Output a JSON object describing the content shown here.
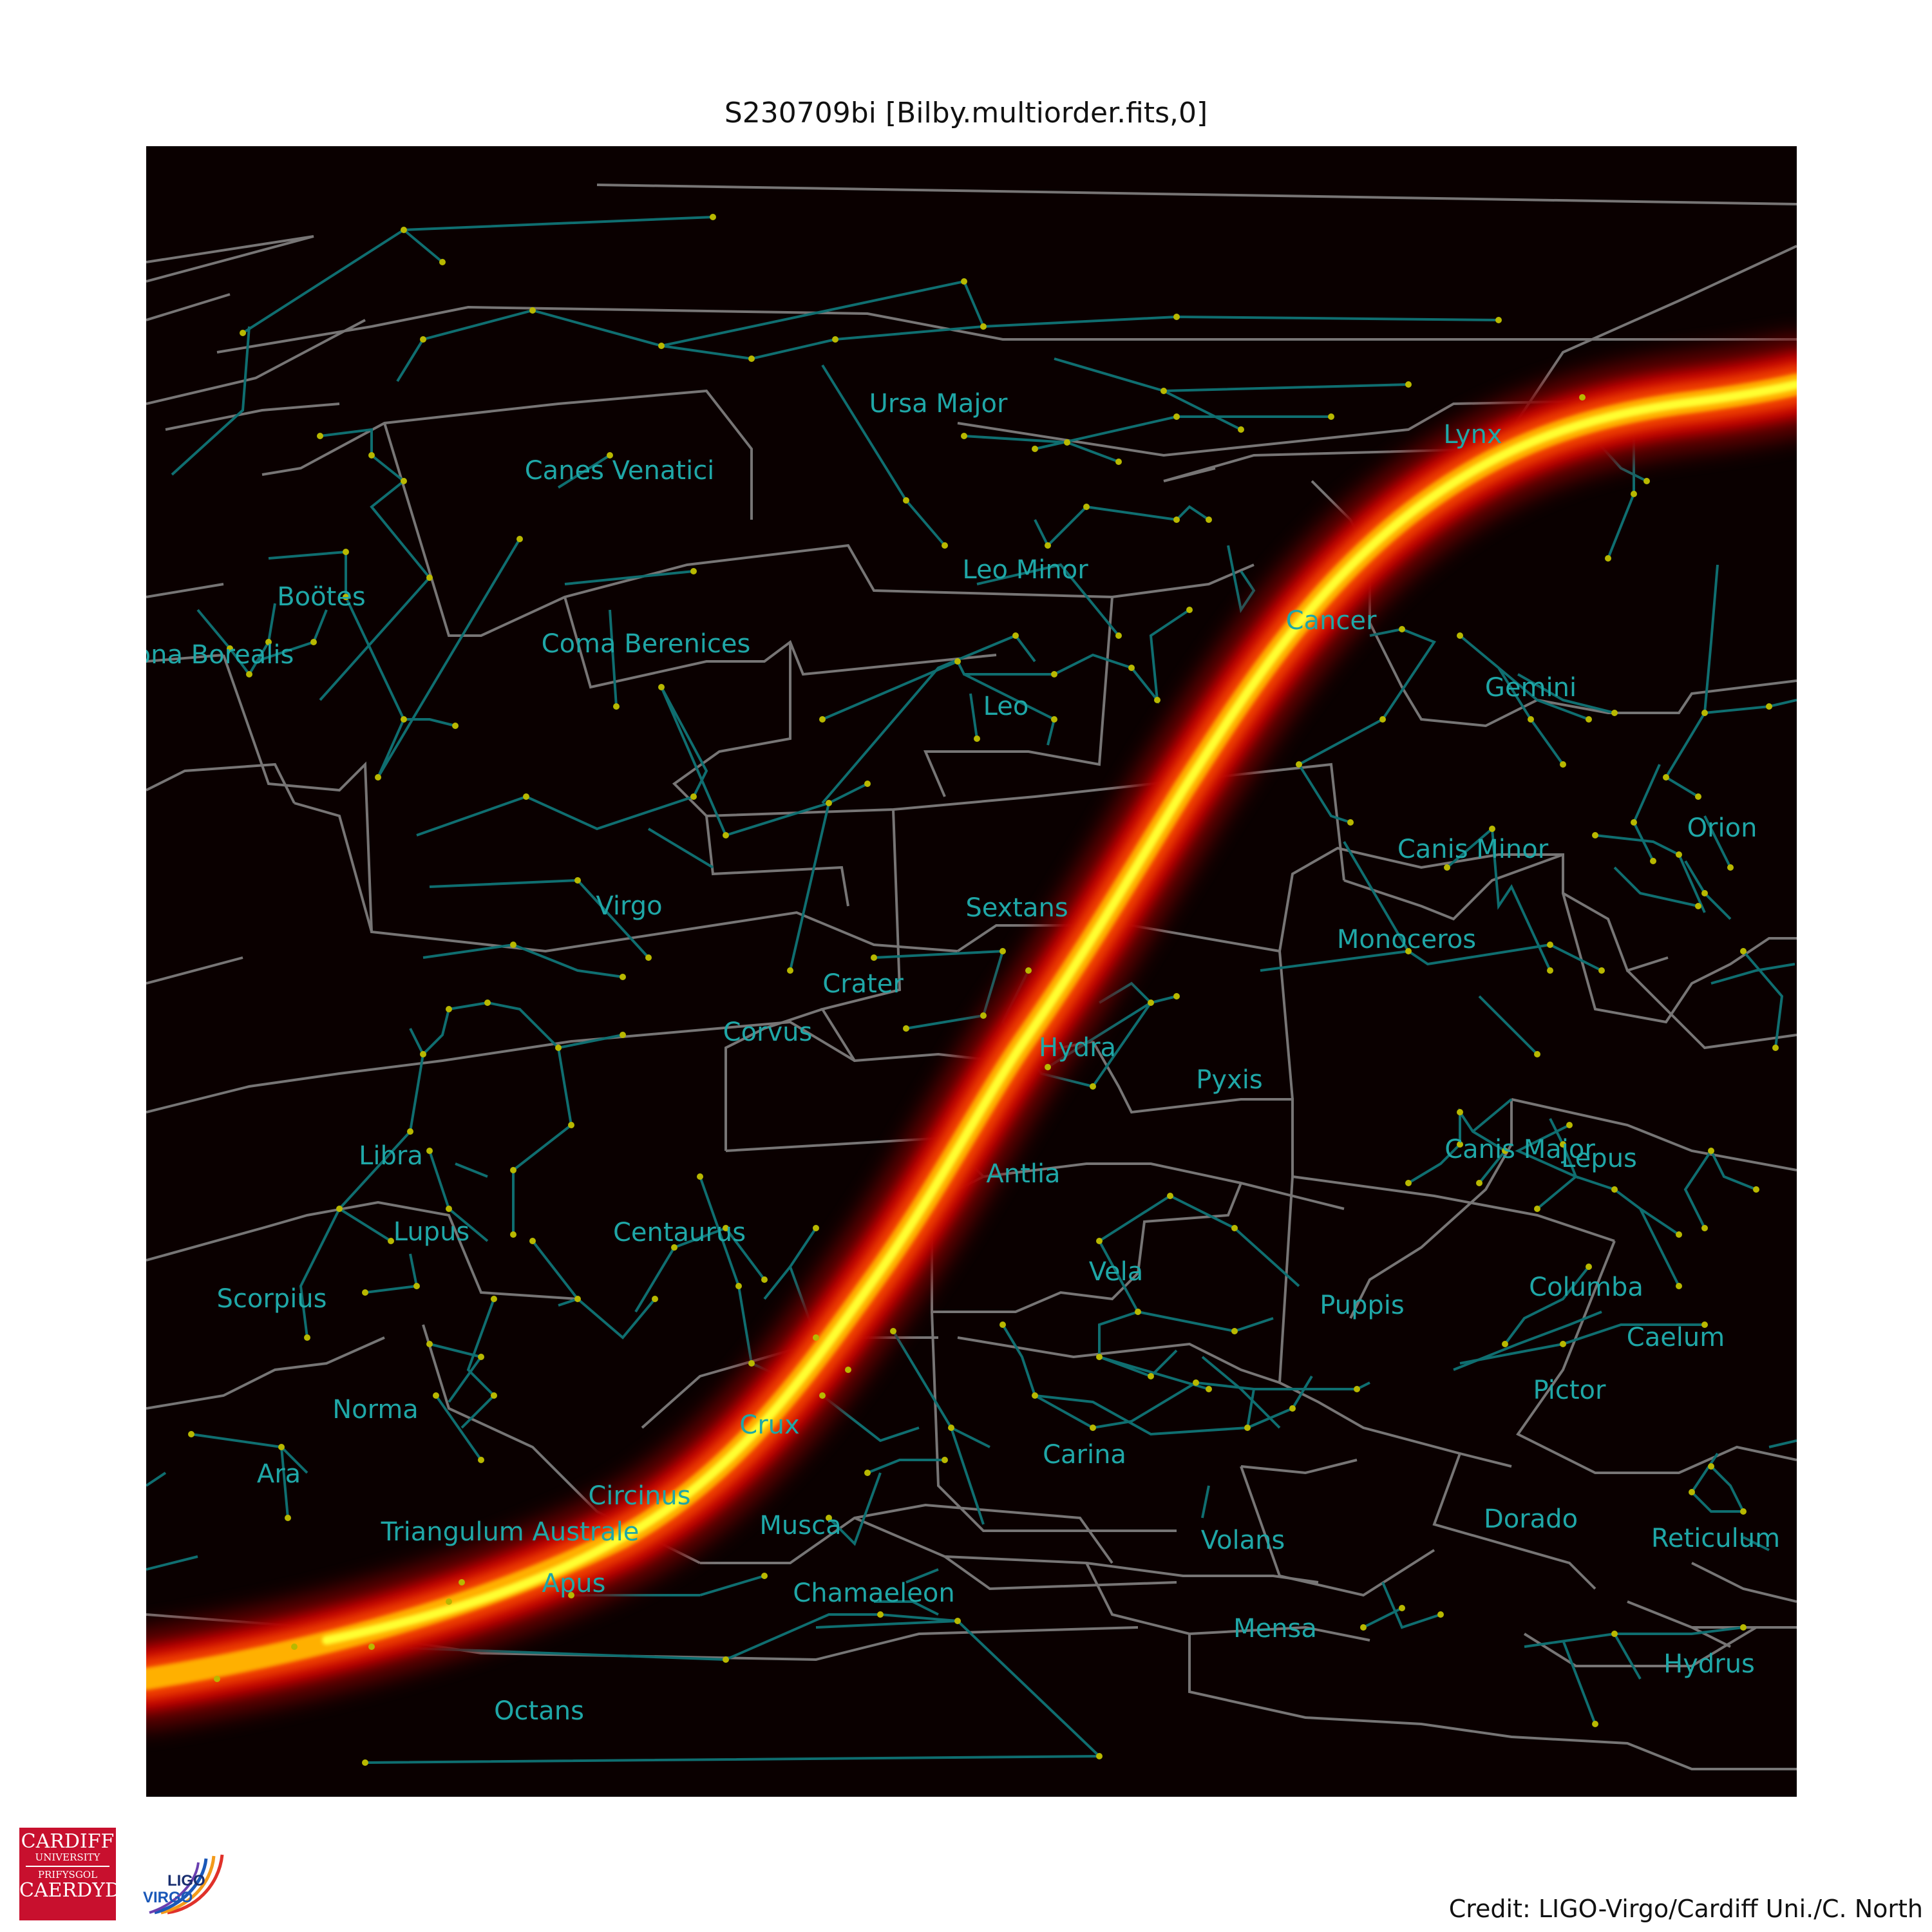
{
  "title": "S230709bi [Bilby.multiorder.fits,0]",
  "credit": "Credit: LIGO-Virgo/Cardiff Uni./C. North",
  "logos": {
    "cardiff_line1": "CARDIFF",
    "cardiff_line2": "UNIVERSITY",
    "cardiff_line3": "PRIFYSGOL",
    "cardiff_line4": "CAERDYD",
    "ligo": "LIGO",
    "virgo": "VIRGO"
  },
  "colors": {
    "background": "#0a0000",
    "boundaries": "#8a8a8a",
    "stick_figures": "#0f6e70",
    "stars": "#b8b800",
    "labels": "#1fa7a7",
    "skymap_outer": "#7a0000",
    "skymap_mid": "#e61a00",
    "skymap_core": "#ffff33"
  },
  "constellations": [
    "Ursa Major",
    "Lynx",
    "Canes Venatici",
    "Leo Minor",
    "Boötes",
    "Cancer",
    "Coma Berenices",
    "Corona Borealis",
    "Gemini",
    "Leo",
    "Orion",
    "Canis Minor",
    "Virgo",
    "Sextans",
    "Monoceros",
    "Crater",
    "Corvus",
    "Hydra",
    "Pyxis",
    "Libra",
    "Canis Major",
    "Lepus",
    "Antlia",
    "Lupus",
    "Centaurus",
    "Vela",
    "Columba",
    "Scorpius",
    "Puppis",
    "Caelum",
    "Norma",
    "Pictor",
    "Crux",
    "Carina",
    "Ara",
    "Circinus",
    "Dorado",
    "Musca",
    "Triangulum Australe",
    "Volans",
    "Reticulum",
    "Apus",
    "Chamaeleon",
    "Mensa",
    "Hydrus",
    "Octans"
  ]
}
